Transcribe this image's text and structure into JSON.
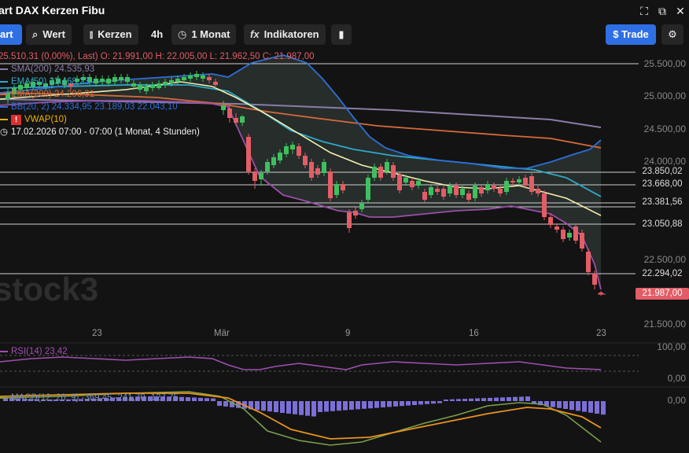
{
  "window": {
    "title": "art DAX Kerzen Fibu"
  },
  "toolbar": {
    "chart_tab": "art",
    "search_label": "Wert",
    "candles_label": "Kerzen",
    "interval_label": "4h",
    "range_label": "1 Monat",
    "indicators_label": "Indikatoren",
    "trade_label": "$ Trade"
  },
  "legend": {
    "ohlc": "O: 21.991,00  H: 22.005,00  L: 21.962,50  C: 21.987,00",
    "header_overlap": "25.510,31 (0,00%), Last)",
    "sma200": "SMA(200)  24.535,93",
    "ema50": "EMA(50)  23.468,23",
    "ema200": "EMA(200)  24.296,91",
    "bb": "BB(20, 2)  24.334,95  23.189,03  22.043,10",
    "vwap": "VWAP(10)",
    "timestamp": "17.02.2026 07:00 - 07:00   (1 Monat, 4 Stunden)"
  },
  "price_axis": {
    "ticks": [
      "25.500,00",
      "25.000,00",
      "24.500,00",
      "24.000,00",
      "22.500,00",
      "21.500,00"
    ],
    "levels": [
      "23.850,02",
      "23.668,00",
      "23.381,56",
      "23.050,88",
      "22.294,02"
    ],
    "last_price": "21.987,00"
  },
  "x_axis": {
    "labels": [
      "23",
      "Mär",
      "9",
      "16",
      "23"
    ]
  },
  "rsi": {
    "label": "RSI(14)  23,42",
    "top": "100,00",
    "mid": "0,00"
  },
  "macd": {
    "label": "MACD(12, 26, 9)  -369,45  -241,70  -127,75",
    "zero": "0,00"
  },
  "watermark": "stock3",
  "colors": {
    "up": "#3fbf5f",
    "down": "#e35d66",
    "sma200": "#8b7ca8",
    "ema50": "#2fa8c8",
    "ema200": "#d66a3a",
    "bb": "#2d6fd8",
    "bb_lower": "#9a4fa8",
    "vwap": "#f5f0b0",
    "accent": "#2f6fe4",
    "last": "#e35d66"
  }
}
